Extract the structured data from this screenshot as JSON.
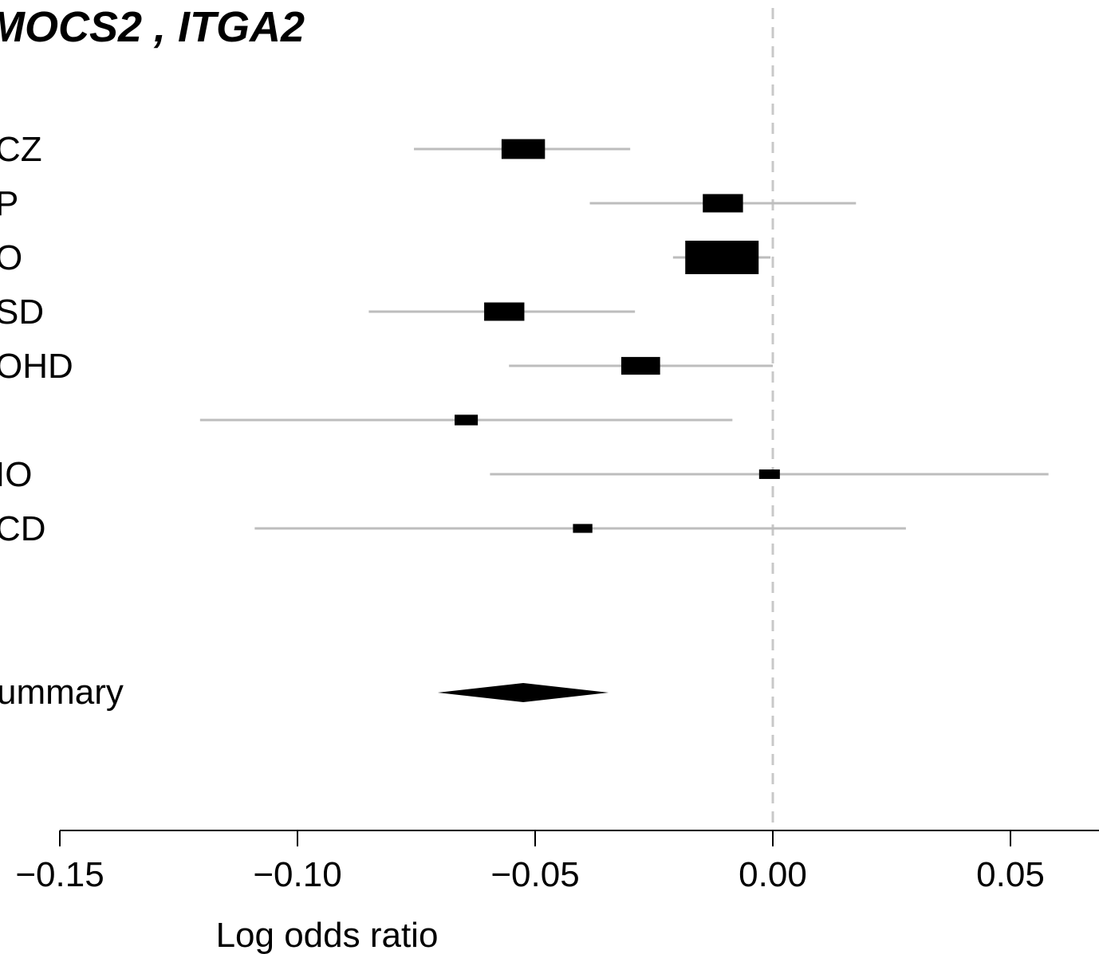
{
  "chart_data": {
    "type": "forest",
    "title": "MOCS2 ,  ITGA2",
    "xlabel": "Log odds ratio",
    "xlim": [
      -0.15,
      0.06
    ],
    "x_ticks": [
      -0.15,
      -0.1,
      -0.05,
      0.0,
      0.05
    ],
    "x_tick_labels": [
      "−0.15",
      "−0.10",
      "−0.05",
      "0.00",
      "0.05"
    ],
    "reference_line": 0.0,
    "studies": [
      {
        "label": "CZ",
        "estimate": -0.0525,
        "ci_lower": -0.0755,
        "ci_upper": -0.03,
        "weight": 0.35
      },
      {
        "label": "P",
        "estimate": -0.0105,
        "ci_lower": -0.0385,
        "ci_upper": 0.0175,
        "weight": 0.3
      },
      {
        "label": "O",
        "estimate": -0.0107,
        "ci_lower": -0.021,
        "ci_upper": -0.0005,
        "weight": 1.0
      },
      {
        "label": "SD",
        "estimate": -0.0565,
        "ci_lower": -0.085,
        "ci_upper": -0.029,
        "weight": 0.3
      },
      {
        "label": "OHD",
        "estimate": -0.0278,
        "ci_lower": -0.0555,
        "ci_upper": 0.0,
        "weight": 0.28
      },
      {
        "label": "",
        "estimate": -0.0645,
        "ci_lower": -0.1205,
        "ci_upper": -0.0085,
        "weight": 0.1
      },
      {
        "label": "IO",
        "estimate": -0.0007,
        "ci_lower": -0.0595,
        "ci_upper": 0.058,
        "weight": 0.08
      },
      {
        "label": "CD",
        "estimate": -0.04,
        "ci_lower": -0.109,
        "ci_upper": 0.028,
        "weight": 0.07
      }
    ],
    "summary": {
      "label": "ummary",
      "estimate": -0.0525,
      "ci_lower": -0.0705,
      "ci_upper": -0.0345
    }
  }
}
